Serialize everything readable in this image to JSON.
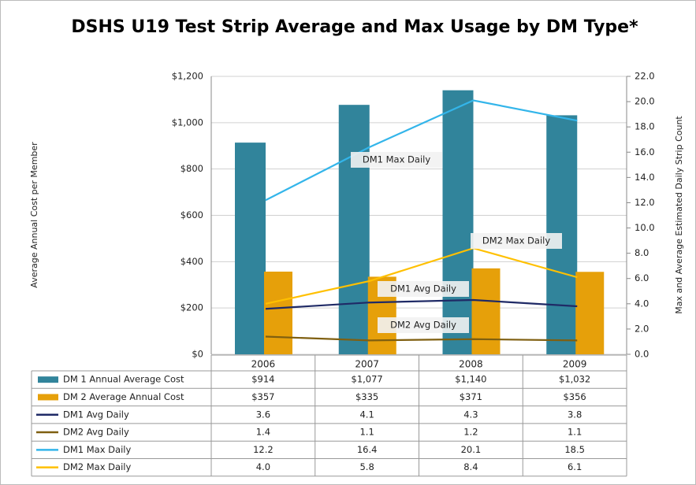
{
  "chart_data": {
    "type": "bar",
    "title": "DSHS U19 Test Strip Average and Max Usage by DM Type*",
    "y_label": "Average Annual Cost per Member",
    "y2_label": "Max and Average Estimated Daily Strip Count",
    "categories": [
      "2006",
      "2007",
      "2008",
      "2009"
    ],
    "ylim": [
      0,
      1200
    ],
    "yticks": [
      {
        "value": 0,
        "label": "$0"
      },
      {
        "value": 200,
        "label": "$200"
      },
      {
        "value": 400,
        "label": "$400"
      },
      {
        "value": 600,
        "label": "$600"
      },
      {
        "value": 800,
        "label": "$800"
      },
      {
        "value": 1000,
        "label": "$1,000"
      },
      {
        "value": 1200,
        "label": "$1,200"
      }
    ],
    "y2lim": [
      0,
      22
    ],
    "y2ticks": [
      {
        "value": 0,
        "label": "0.0"
      },
      {
        "value": 2,
        "label": "2.0"
      },
      {
        "value": 4,
        "label": "4.0"
      },
      {
        "value": 6,
        "label": "6.0"
      },
      {
        "value": 8,
        "label": "8.0"
      },
      {
        "value": 10,
        "label": "10.0"
      },
      {
        "value": 12,
        "label": "12.0"
      },
      {
        "value": 14,
        "label": "14.0"
      },
      {
        "value": 16,
        "label": "16.0"
      },
      {
        "value": 18,
        "label": "18.0"
      },
      {
        "value": 20,
        "label": "20.0"
      },
      {
        "value": 22,
        "label": "22.0"
      }
    ],
    "grid": true,
    "series": [
      {
        "name": "DM 1 Annual Average Cost",
        "type": "bar",
        "color": "#31849b",
        "values": [
          914,
          1077,
          1140,
          1032
        ],
        "value_labels": [
          "$914",
          "$1,077",
          "$1,140",
          "$1,032"
        ]
      },
      {
        "name": "DM 2 Average Annual Cost",
        "type": "bar",
        "color": "#e6a00a",
        "values": [
          357,
          335,
          371,
          356
        ],
        "value_labels": [
          "$357",
          "$335",
          "$371",
          "$356"
        ]
      },
      {
        "name": "DM1 Avg Daily",
        "type": "line",
        "axis": "y2",
        "color": "#1f2a66",
        "values": [
          3.6,
          4.1,
          4.3,
          3.8
        ],
        "value_labels": [
          "3.6",
          "4.1",
          "4.3",
          "3.8"
        ]
      },
      {
        "name": "DM2 Avg Daily",
        "type": "line",
        "axis": "y2",
        "color": "#7f5f10",
        "values": [
          1.4,
          1.1,
          1.2,
          1.1
        ],
        "value_labels": [
          "1.4",
          "1.1",
          "1.2",
          "1.1"
        ]
      },
      {
        "name": "DM1 Max Daily",
        "type": "line",
        "axis": "y2",
        "color": "#33b5ea",
        "values": [
          12.2,
          16.4,
          20.1,
          18.5
        ],
        "value_labels": [
          "12.2",
          "16.4",
          "20.1",
          "18.5"
        ]
      },
      {
        "name": "DM2 Max Daily",
        "type": "line",
        "axis": "y2",
        "color": "#ffc000",
        "values": [
          4.0,
          5.8,
          8.4,
          6.1
        ],
        "value_labels": [
          "4.0",
          "5.8",
          "8.4",
          "6.1"
        ]
      }
    ],
    "annotations": [
      "DM1 Max Daily",
      "DM2 Max Daily",
      "DM1 Avg Daily",
      "DM2 Avg Daily"
    ]
  }
}
